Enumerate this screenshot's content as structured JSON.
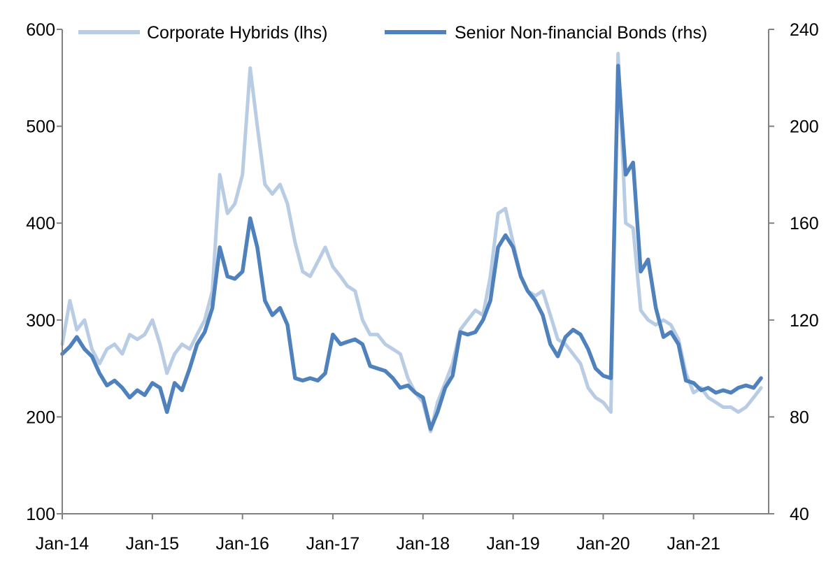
{
  "chart_data": {
    "type": "line",
    "title": "",
    "xlabel": "",
    "ylabel": "",
    "y2label": "",
    "grid": false,
    "legend_position": "top",
    "x_ticks": [
      "Jan-14",
      "Jan-15",
      "Jan-16",
      "Jan-17",
      "Jan-18",
      "Jan-19",
      "Jan-20",
      "Jan-21"
    ],
    "y_left": {
      "min": 100,
      "max": 600,
      "ticks": [
        100,
        200,
        300,
        400,
        500,
        600
      ]
    },
    "y_right": {
      "min": 40,
      "max": 240,
      "ticks": [
        40,
        80,
        120,
        160,
        200,
        240
      ]
    },
    "series": [
      {
        "name": "Corporate Hybrids (lhs)",
        "axis": "left",
        "color": "#b8cce4",
        "points": [
          [
            "2014-01-01",
            275
          ],
          [
            "2014-02-01",
            320
          ],
          [
            "2014-03-01",
            290
          ],
          [
            "2014-04-01",
            300
          ],
          [
            "2014-05-01",
            270
          ],
          [
            "2014-06-01",
            255
          ],
          [
            "2014-07-01",
            270
          ],
          [
            "2014-08-01",
            275
          ],
          [
            "2014-09-01",
            265
          ],
          [
            "2014-10-01",
            285
          ],
          [
            "2014-11-01",
            280
          ],
          [
            "2014-12-01",
            285
          ],
          [
            "2015-01-01",
            300
          ],
          [
            "2015-02-01",
            275
          ],
          [
            "2015-03-01",
            245
          ],
          [
            "2015-04-01",
            265
          ],
          [
            "2015-05-01",
            275
          ],
          [
            "2015-06-01",
            270
          ],
          [
            "2015-07-01",
            285
          ],
          [
            "2015-08-01",
            300
          ],
          [
            "2015-09-01",
            330
          ],
          [
            "2015-10-01",
            450
          ],
          [
            "2015-11-01",
            410
          ],
          [
            "2015-12-01",
            420
          ],
          [
            "2016-01-01",
            450
          ],
          [
            "2016-02-01",
            560
          ],
          [
            "2016-03-01",
            500
          ],
          [
            "2016-04-01",
            440
          ],
          [
            "2016-05-01",
            430
          ],
          [
            "2016-06-01",
            440
          ],
          [
            "2016-07-01",
            420
          ],
          [
            "2016-08-01",
            380
          ],
          [
            "2016-09-01",
            350
          ],
          [
            "2016-10-01",
            345
          ],
          [
            "2016-11-01",
            360
          ],
          [
            "2016-12-01",
            375
          ],
          [
            "2017-01-01",
            355
          ],
          [
            "2017-02-01",
            345
          ],
          [
            "2017-03-01",
            335
          ],
          [
            "2017-04-01",
            330
          ],
          [
            "2017-05-01",
            300
          ],
          [
            "2017-06-01",
            285
          ],
          [
            "2017-07-01",
            285
          ],
          [
            "2017-08-01",
            275
          ],
          [
            "2017-09-01",
            270
          ],
          [
            "2017-10-01",
            265
          ],
          [
            "2017-11-01",
            240
          ],
          [
            "2017-12-01",
            225
          ],
          [
            "2018-01-01",
            215
          ],
          [
            "2018-02-01",
            185
          ],
          [
            "2018-03-01",
            215
          ],
          [
            "2018-04-01",
            235
          ],
          [
            "2018-05-01",
            255
          ],
          [
            "2018-06-01",
            290
          ],
          [
            "2018-07-01",
            300
          ],
          [
            "2018-08-01",
            310
          ],
          [
            "2018-09-01",
            305
          ],
          [
            "2018-10-01",
            345
          ],
          [
            "2018-11-01",
            410
          ],
          [
            "2018-12-01",
            415
          ],
          [
            "2019-01-01",
            380
          ],
          [
            "2019-02-01",
            345
          ],
          [
            "2019-03-01",
            330
          ],
          [
            "2019-04-01",
            325
          ],
          [
            "2019-05-01",
            330
          ],
          [
            "2019-06-01",
            305
          ],
          [
            "2019-07-01",
            280
          ],
          [
            "2019-08-01",
            275
          ],
          [
            "2019-09-01",
            265
          ],
          [
            "2019-10-01",
            255
          ],
          [
            "2019-11-01",
            230
          ],
          [
            "2019-12-01",
            220
          ],
          [
            "2020-01-01",
            215
          ],
          [
            "2020-02-01",
            205
          ],
          [
            "2020-03-01",
            575
          ],
          [
            "2020-04-01",
            400
          ],
          [
            "2020-05-01",
            395
          ],
          [
            "2020-06-01",
            310
          ],
          [
            "2020-07-01",
            300
          ],
          [
            "2020-08-01",
            295
          ],
          [
            "2020-09-01",
            300
          ],
          [
            "2020-10-01",
            295
          ],
          [
            "2020-11-01",
            280
          ],
          [
            "2020-12-01",
            245
          ],
          [
            "2021-01-01",
            225
          ],
          [
            "2021-02-01",
            230
          ],
          [
            "2021-03-01",
            220
          ],
          [
            "2021-04-01",
            215
          ],
          [
            "2021-05-01",
            210
          ],
          [
            "2021-06-01",
            210
          ],
          [
            "2021-07-01",
            205
          ],
          [
            "2021-08-01",
            210
          ],
          [
            "2021-09-01",
            220
          ],
          [
            "2021-10-01",
            230
          ]
        ]
      },
      {
        "name": "Senior Non-financial Bonds (rhs)",
        "axis": "right",
        "color": "#4f81bd",
        "points": [
          [
            "2014-01-01",
            106
          ],
          [
            "2014-02-01",
            109
          ],
          [
            "2014-03-01",
            113
          ],
          [
            "2014-04-01",
            108
          ],
          [
            "2014-05-01",
            105
          ],
          [
            "2014-06-01",
            98
          ],
          [
            "2014-07-01",
            93
          ],
          [
            "2014-08-01",
            95
          ],
          [
            "2014-09-01",
            92
          ],
          [
            "2014-10-01",
            88
          ],
          [
            "2014-11-01",
            91
          ],
          [
            "2014-12-01",
            89
          ],
          [
            "2015-01-01",
            94
          ],
          [
            "2015-02-01",
            92
          ],
          [
            "2015-03-01",
            82
          ],
          [
            "2015-04-01",
            94
          ],
          [
            "2015-05-01",
            91
          ],
          [
            "2015-06-01",
            100
          ],
          [
            "2015-07-01",
            110
          ],
          [
            "2015-08-01",
            115
          ],
          [
            "2015-09-01",
            125
          ],
          [
            "2015-10-01",
            150
          ],
          [
            "2015-11-01",
            138
          ],
          [
            "2015-12-01",
            137
          ],
          [
            "2016-01-01",
            140
          ],
          [
            "2016-02-01",
            162
          ],
          [
            "2016-03-01",
            150
          ],
          [
            "2016-04-01",
            128
          ],
          [
            "2016-05-01",
            122
          ],
          [
            "2016-06-01",
            125
          ],
          [
            "2016-07-01",
            118
          ],
          [
            "2016-08-01",
            96
          ],
          [
            "2016-09-01",
            95
          ],
          [
            "2016-10-01",
            96
          ],
          [
            "2016-11-01",
            95
          ],
          [
            "2016-12-01",
            98
          ],
          [
            "2017-01-01",
            114
          ],
          [
            "2017-02-01",
            110
          ],
          [
            "2017-03-01",
            111
          ],
          [
            "2017-04-01",
            112
          ],
          [
            "2017-05-01",
            110
          ],
          [
            "2017-06-01",
            101
          ],
          [
            "2017-07-01",
            100
          ],
          [
            "2017-08-01",
            99
          ],
          [
            "2017-09-01",
            96
          ],
          [
            "2017-10-01",
            92
          ],
          [
            "2017-11-01",
            93
          ],
          [
            "2017-12-01",
            90
          ],
          [
            "2018-01-01",
            88
          ],
          [
            "2018-02-01",
            75
          ],
          [
            "2018-03-01",
            82
          ],
          [
            "2018-04-01",
            92
          ],
          [
            "2018-05-01",
            97
          ],
          [
            "2018-06-01",
            115
          ],
          [
            "2018-07-01",
            114
          ],
          [
            "2018-08-01",
            115
          ],
          [
            "2018-09-01",
            120
          ],
          [
            "2018-10-01",
            128
          ],
          [
            "2018-11-01",
            150
          ],
          [
            "2018-12-01",
            155
          ],
          [
            "2019-01-01",
            150
          ],
          [
            "2019-02-01",
            138
          ],
          [
            "2019-03-01",
            132
          ],
          [
            "2019-04-01",
            128
          ],
          [
            "2019-05-01",
            122
          ],
          [
            "2019-06-01",
            110
          ],
          [
            "2019-07-01",
            105
          ],
          [
            "2019-08-01",
            113
          ],
          [
            "2019-09-01",
            116
          ],
          [
            "2019-10-01",
            114
          ],
          [
            "2019-11-01",
            108
          ],
          [
            "2019-12-01",
            100
          ],
          [
            "2020-01-01",
            97
          ],
          [
            "2020-02-01",
            96
          ],
          [
            "2020-03-01",
            225
          ],
          [
            "2020-04-01",
            180
          ],
          [
            "2020-05-01",
            185
          ],
          [
            "2020-06-01",
            140
          ],
          [
            "2020-07-01",
            145
          ],
          [
            "2020-08-01",
            125
          ],
          [
            "2020-09-01",
            113
          ],
          [
            "2020-10-01",
            115
          ],
          [
            "2020-11-01",
            110
          ],
          [
            "2020-12-01",
            95
          ],
          [
            "2021-01-01",
            94
          ],
          [
            "2021-02-01",
            91
          ],
          [
            "2021-03-01",
            92
          ],
          [
            "2021-04-01",
            90
          ],
          [
            "2021-05-01",
            91
          ],
          [
            "2021-06-01",
            90
          ],
          [
            "2021-07-01",
            92
          ],
          [
            "2021-08-01",
            93
          ],
          [
            "2021-09-01",
            92
          ],
          [
            "2021-10-01",
            96
          ]
        ]
      }
    ]
  }
}
